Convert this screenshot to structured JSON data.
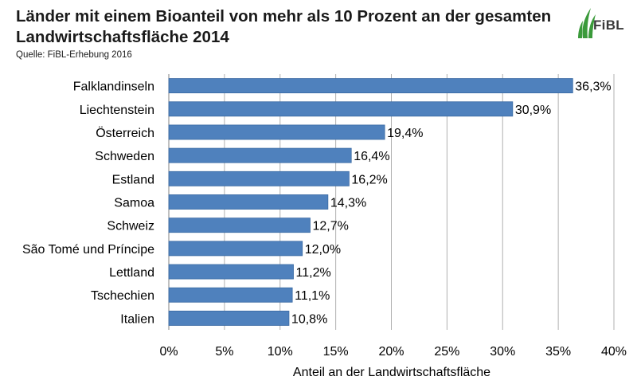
{
  "title": "Länder mit einem Bioanteil von mehr als 10 Prozent an der gesamten Landwirtschaftsfläche 2014",
  "source": "Quelle: FiBL-Erhebung 2016",
  "logo_text": "FiBL",
  "colors": {
    "bar": "#4f81bd",
    "bar_edge": "#3a6aa3",
    "grid": "#b0b0b0",
    "logo_green": "#3a9a3a"
  },
  "chart_data": {
    "type": "bar",
    "orientation": "horizontal",
    "categories": [
      "Falklandinseln",
      "Liechtenstein",
      "Österreich",
      "Schweden",
      "Estland",
      "Samoa",
      "Schweiz",
      "São Tomé und Príncipe",
      "Lettland",
      "Tschechien",
      "Italien"
    ],
    "values": [
      36.3,
      30.9,
      19.4,
      16.4,
      16.2,
      14.3,
      12.7,
      12.0,
      11.2,
      11.1,
      10.8
    ],
    "value_labels": [
      "36,3%",
      "30,9%",
      "19,4%",
      "16,4%",
      "16,2%",
      "14,3%",
      "12,7%",
      "12,0%",
      "11,2%",
      "11,1%",
      "10,8%"
    ],
    "xlabel": "Anteil an der Landwirtschaftsfläche",
    "ylabel": "",
    "xlim": [
      0,
      40
    ],
    "xticks": [
      0,
      5,
      10,
      15,
      20,
      25,
      30,
      35,
      40
    ],
    "xtick_labels": [
      "0%",
      "5%",
      "10%",
      "15%",
      "20%",
      "25%",
      "30%",
      "35%",
      "40%"
    ],
    "grid": "vertical",
    "legend": "none"
  }
}
